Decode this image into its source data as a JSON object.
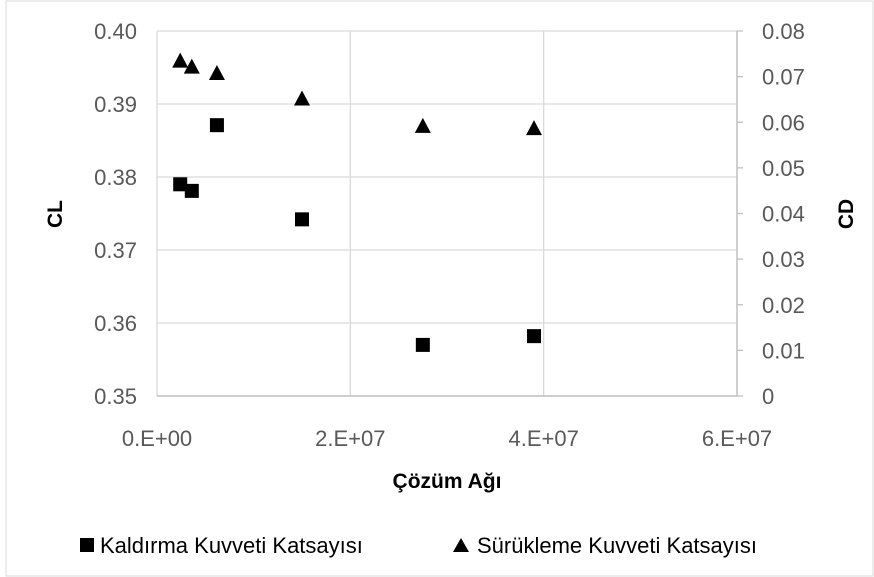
{
  "chart_data": {
    "type": "scatter",
    "title": "",
    "xlabel": "Çözüm Ağı",
    "ylabel_left": "CL",
    "ylabel_right": "CD",
    "xlim": [
      0,
      60000000
    ],
    "ylim_left": [
      0.35,
      0.4
    ],
    "ylim_right": [
      0,
      0.08
    ],
    "x_ticks": [
      {
        "value": 0,
        "label": "0.E+00"
      },
      {
        "value": 20000000,
        "label": "2.E+07"
      },
      {
        "value": 40000000,
        "label": "4.E+07"
      },
      {
        "value": 60000000,
        "label": "6.E+07"
      }
    ],
    "y_left_ticks": [
      {
        "value": 0.35,
        "label": "0.35"
      },
      {
        "value": 0.36,
        "label": "0.36"
      },
      {
        "value": 0.37,
        "label": "0.37"
      },
      {
        "value": 0.38,
        "label": "0.38"
      },
      {
        "value": 0.39,
        "label": "0.39"
      },
      {
        "value": 0.4,
        "label": "0.40"
      }
    ],
    "y_right_ticks": [
      {
        "value": 0,
        "label": "0"
      },
      {
        "value": 0.01,
        "label": "0.01"
      },
      {
        "value": 0.02,
        "label": "0.02"
      },
      {
        "value": 0.03,
        "label": "0.03"
      },
      {
        "value": 0.04,
        "label": "0.04"
      },
      {
        "value": 0.05,
        "label": "0.05"
      },
      {
        "value": 0.06,
        "label": "0.06"
      },
      {
        "value": 0.07,
        "label": "0.07"
      },
      {
        "value": 0.08,
        "label": "0.08"
      }
    ],
    "grid": true,
    "legend_position": "bottom",
    "series": [
      {
        "name": "Kaldırma Kuvveti Katsayısı",
        "axis": "left",
        "marker": "square",
        "color": "#000000",
        "points": [
          {
            "x": 2400000,
            "y": 0.379
          },
          {
            "x": 3600000,
            "y": 0.3781
          },
          {
            "x": 6200000,
            "y": 0.3871
          },
          {
            "x": 15000000,
            "y": 0.3742
          },
          {
            "x": 27500000,
            "y": 0.357
          },
          {
            "x": 39000000,
            "y": 0.3582
          }
        ]
      },
      {
        "name": "Sürükleme Kuvveti Katsayısı",
        "axis": "right",
        "marker": "triangle",
        "color": "#000000",
        "points": [
          {
            "x": 2400000,
            "y": 0.0735
          },
          {
            "x": 3600000,
            "y": 0.0722
          },
          {
            "x": 6200000,
            "y": 0.0708
          },
          {
            "x": 15000000,
            "y": 0.0652
          },
          {
            "x": 27500000,
            "y": 0.0592
          },
          {
            "x": 39000000,
            "y": 0.0587
          }
        ]
      }
    ]
  },
  "style": {
    "grid_color": "#d9d9d9",
    "axis_color": "#bfbfbf",
    "frame_color": "#d9d9d9"
  }
}
